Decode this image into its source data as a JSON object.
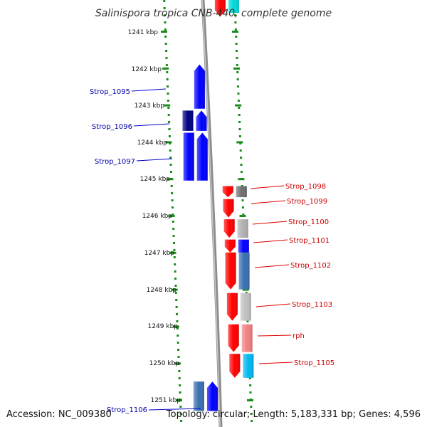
{
  "title": "Salinispora tropica CNB-440, complete genome",
  "accession": "Accession: NC_009380",
  "topology": "Topology: circular; Length: 5,183,331 bp; Genes: 4,596",
  "colors": {
    "backbone": "#8c8c8c",
    "dots": "#1a8c1a",
    "forward_label": "#0000aa",
    "reverse_label": "#cc0000"
  },
  "scale": {
    "unit": "kbp",
    "ticks": [
      "1241 kbp",
      "1242 kbp",
      "1243 kbp",
      "1244 kbp",
      "1245 kbp",
      "1246 kbp",
      "1247 kbp",
      "1248 kbp",
      "1249 kbp",
      "1250 kbp",
      "1251 kbp"
    ]
  },
  "labels": {
    "left": [
      "Strop_1095",
      "Strop_1096",
      "Strop_1097",
      "Strop_1106"
    ],
    "right": [
      "Strop_1098",
      "Strop_1099",
      "Strop_1100",
      "Strop_1101",
      "Strop_1102",
      "Strop_1103",
      "rph",
      "Strop_1105"
    ]
  },
  "genes": [
    {
      "strand": "+",
      "start": 1240.0,
      "end": 1240.6,
      "color": "#ff0000",
      "lane": "inner",
      "dir": "down"
    },
    {
      "strand": "+",
      "start": 1240.0,
      "end": 1240.5,
      "color": "#00d8d8",
      "lane": "outer",
      "dir": "none"
    },
    {
      "strand": "-",
      "start": 1241.9,
      "end": 1243.1,
      "color": "#0000ff",
      "lane": "inner",
      "dir": "up"
    },
    {
      "strand": "-",
      "start": 1243.15,
      "end": 1243.7,
      "color": "#000080",
      "lane": "outer",
      "dir": "none"
    },
    {
      "strand": "-",
      "start": 1243.15,
      "end": 1243.7,
      "color": "#0000ff",
      "lane": "inner",
      "dir": "up"
    },
    {
      "strand": "-",
      "start": 1243.75,
      "end": 1245.05,
      "color": "#0000ff",
      "lane": "outer",
      "dir": "none"
    },
    {
      "strand": "-",
      "start": 1243.75,
      "end": 1245.05,
      "color": "#0000ff",
      "lane": "inner",
      "dir": "up"
    },
    {
      "strand": "+",
      "start": 1245.2,
      "end": 1245.5,
      "color": "#ff0000",
      "lane": "inner",
      "dir": "down"
    },
    {
      "strand": "+",
      "start": 1245.2,
      "end": 1245.5,
      "color": "#707070",
      "lane": "outer",
      "dir": "none"
    },
    {
      "strand": "+",
      "start": 1245.55,
      "end": 1246.05,
      "color": "#ff0000",
      "lane": "inner",
      "dir": "down"
    },
    {
      "strand": "+",
      "start": 1246.1,
      "end": 1246.6,
      "color": "#ff0000",
      "lane": "inner",
      "dir": "down"
    },
    {
      "strand": "+",
      "start": 1246.1,
      "end": 1246.6,
      "color": "#b0b0b0",
      "lane": "outer",
      "dir": "none"
    },
    {
      "strand": "+",
      "start": 1246.65,
      "end": 1247.0,
      "color": "#ff0000",
      "lane": "inner",
      "dir": "down"
    },
    {
      "strand": "+",
      "start": 1246.65,
      "end": 1247.0,
      "color": "#0000ff",
      "lane": "outer",
      "dir": "none"
    },
    {
      "strand": "+",
      "start": 1247.0,
      "end": 1248.0,
      "color": "#ff0000",
      "lane": "inner",
      "dir": "down"
    },
    {
      "strand": "+",
      "start": 1247.0,
      "end": 1248.0,
      "color": "#3a70b0",
      "lane": "outer",
      "dir": "none"
    },
    {
      "strand": "+",
      "start": 1248.1,
      "end": 1248.85,
      "color": "#ff0000",
      "lane": "inner",
      "dir": "down"
    },
    {
      "strand": "+",
      "start": 1248.1,
      "end": 1248.85,
      "color": "#c0c0c0",
      "lane": "outer",
      "dir": "none"
    },
    {
      "strand": "+",
      "start": 1248.95,
      "end": 1249.7,
      "color": "#ff0000",
      "lane": "inner",
      "dir": "down"
    },
    {
      "strand": "+",
      "start": 1248.95,
      "end": 1249.7,
      "color": "#f08080",
      "lane": "outer",
      "dir": "none"
    },
    {
      "strand": "+",
      "start": 1249.75,
      "end": 1250.4,
      "color": "#ff0000",
      "lane": "inner",
      "dir": "down"
    },
    {
      "strand": "+",
      "start": 1249.75,
      "end": 1250.4,
      "color": "#00b8f0",
      "lane": "outer",
      "dir": "none"
    },
    {
      "strand": "-",
      "start": 1250.5,
      "end": 1251.3,
      "color": "#3a70b0",
      "lane": "outer",
      "dir": "none"
    },
    {
      "strand": "-",
      "start": 1250.5,
      "end": 1251.3,
      "color": "#0000ff",
      "lane": "inner",
      "dir": "up"
    }
  ]
}
